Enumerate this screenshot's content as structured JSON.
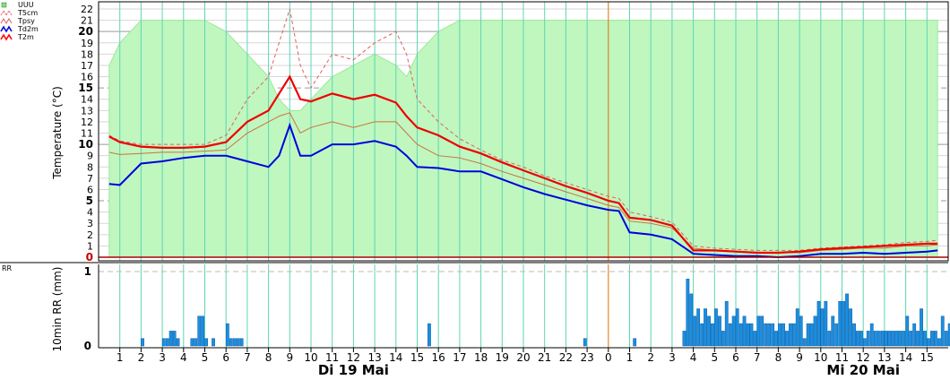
{
  "chart_data": [
    {
      "type": "area+line",
      "panel": "temperature",
      "ylabel": "Temperature (°C)",
      "ylim": [
        0,
        22.5
      ],
      "y_ticks": [
        0,
        1,
        2,
        3,
        4,
        5,
        6,
        7,
        8,
        9,
        10,
        11,
        12,
        13,
        14,
        15,
        16,
        17,
        18,
        19,
        20,
        21,
        22
      ],
      "x_ticks": [
        "1",
        "2",
        "3",
        "4",
        "5",
        "6",
        "7",
        "8",
        "9",
        "10",
        "11",
        "12",
        "13",
        "14",
        "15",
        "16",
        "17",
        "18",
        "19",
        "20",
        "21",
        "22",
        "23",
        "0",
        "1",
        "2",
        "3",
        "4",
        "5",
        "6",
        "7",
        "8",
        "9",
        "10",
        "11",
        "12",
        "13",
        "14",
        "15"
      ],
      "day_labels": [
        {
          "text": "Di 19 Mai",
          "at_hour": 12
        },
        {
          "text": "Mi 20 Mai",
          "at_hour": 36
        }
      ],
      "current_time_marker_hour": 24,
      "legend": [
        {
          "name": "UUU",
          "color": "#80e080"
        },
        {
          "name": "T5cm",
          "color": "#e05050"
        },
        {
          "name": "Tpsy",
          "color": "#e05050"
        },
        {
          "name": "Td2m",
          "color": "#0000dd"
        },
        {
          "name": "T2m",
          "color": "#ff0000"
        }
      ],
      "x_hours_from_midnight": [
        0.5,
        1,
        2,
        3,
        4,
        5,
        6,
        7,
        8,
        8.5,
        9,
        9.5,
        10,
        11,
        12,
        13,
        14,
        14.5,
        15,
        16,
        17,
        18,
        19,
        20,
        21,
        22,
        23,
        24,
        24.5,
        25,
        26,
        27,
        28,
        29,
        30,
        31,
        32,
        33,
        34,
        35,
        36,
        37,
        38,
        39,
        39.5
      ],
      "series": [
        {
          "name": "UUU",
          "values": [
            17,
            19,
            21,
            21,
            21,
            21,
            20,
            18,
            16,
            14,
            13,
            13,
            14,
            16,
            17,
            18,
            17,
            16,
            18,
            20,
            21,
            21,
            21,
            21,
            21,
            21,
            21,
            21,
            21,
            21,
            21,
            21,
            21,
            21,
            21,
            21,
            21,
            21,
            21,
            21,
            21,
            21,
            21,
            21,
            21
          ]
        },
        {
          "name": "T5cm",
          "values": [
            10.8,
            10.3,
            10.0,
            10.0,
            10.0,
            10.0,
            10.8,
            14,
            16,
            19,
            22,
            17,
            15,
            18,
            17.5,
            19,
            20,
            18,
            14,
            12,
            10.5,
            9.5,
            8.6,
            8,
            7.2,
            6.6,
            6,
            5.4,
            5.2,
            4.0,
            3.6,
            3.1,
            1,
            0.8,
            0.7,
            0.6,
            0.6,
            0.6,
            0.8,
            0.9,
            1.0,
            1.1,
            1.3,
            1.4,
            1.5
          ]
        },
        {
          "name": "Tpsy",
          "values": [
            9.3,
            9.1,
            9.2,
            9.3,
            9.3,
            9.4,
            9.5,
            11,
            12,
            12.5,
            12.8,
            11,
            11.5,
            12,
            11.5,
            12,
            12,
            11,
            10,
            9,
            8.8,
            8.3,
            7.6,
            7,
            6.4,
            5.8,
            5.2,
            4.6,
            4.4,
            3.2,
            3.0,
            2.6,
            0.8,
            0.6,
            0.5,
            0.4,
            0.4,
            0.4,
            0.6,
            0.7,
            0.8,
            0.8,
            1,
            1,
            1.1
          ]
        },
        {
          "name": "Td2m",
          "values": [
            6.5,
            6.4,
            8.3,
            8.5,
            8.8,
            9,
            9,
            8.5,
            8,
            9,
            11.7,
            9,
            9,
            10,
            10,
            10.3,
            9.8,
            9,
            8,
            7.9,
            7.6,
            7.6,
            6.9,
            6.2,
            5.6,
            5.1,
            4.6,
            4.2,
            4.1,
            2.2,
            2.0,
            1.6,
            0.3,
            0.2,
            0.1,
            0.1,
            0.0,
            0.1,
            0.3,
            0.3,
            0.4,
            0.3,
            0.4,
            0.5,
            0.6
          ]
        },
        {
          "name": "T2m",
          "values": [
            10.7,
            10.2,
            9.8,
            9.7,
            9.7,
            9.8,
            10.2,
            12,
            13,
            14.5,
            16,
            14,
            13.8,
            14.5,
            14,
            14.4,
            13.7,
            12.5,
            11.5,
            10.8,
            9.8,
            9.2,
            8.4,
            7.7,
            7,
            6.3,
            5.7,
            5,
            4.8,
            3.5,
            3.3,
            2.8,
            0.6,
            0.6,
            0.5,
            0.4,
            0.4,
            0.5,
            0.7,
            0.8,
            0.9,
            1,
            1.1,
            1.2,
            1.2
          ]
        }
      ]
    },
    {
      "type": "bar",
      "panel": "precipitation",
      "title": "RR",
      "ylabel": "10min RR (mm)",
      "ylim": [
        0,
        1
      ],
      "y_ticks": [
        0,
        1
      ],
      "bar_interval_minutes": 10,
      "start_hour": 0.5,
      "values": [
        0,
        0,
        0,
        0,
        0,
        0,
        0,
        0,
        0,
        0.1,
        0,
        0,
        0,
        0,
        0,
        0.1,
        0.1,
        0.2,
        0.2,
        0.1,
        0,
        0,
        0,
        0.1,
        0.1,
        0.4,
        0.4,
        0.1,
        0,
        0.1,
        0,
        0,
        0,
        0.3,
        0.1,
        0.1,
        0.1,
        0.1,
        0,
        0,
        0,
        0,
        0,
        0,
        0,
        0,
        0,
        0,
        0,
        0,
        0,
        0,
        0,
        0,
        0,
        0,
        0,
        0,
        0,
        0,
        0,
        0,
        0,
        0,
        0,
        0,
        0,
        0,
        0,
        0,
        0,
        0,
        0,
        0,
        0,
        0,
        0,
        0,
        0,
        0,
        0,
        0,
        0,
        0,
        0,
        0,
        0,
        0,
        0,
        0,
        0.3,
        0,
        0,
        0,
        0,
        0,
        0,
        0,
        0,
        0,
        0,
        0,
        0,
        0,
        0,
        0,
        0,
        0,
        0,
        0,
        0,
        0,
        0,
        0,
        0,
        0,
        0,
        0,
        0,
        0,
        0,
        0,
        0,
        0,
        0,
        0,
        0,
        0,
        0,
        0,
        0,
        0,
        0,
        0,
        0.1,
        0,
        0,
        0,
        0,
        0,
        0,
        0,
        0,
        0,
        0,
        0,
        0,
        0,
        0.1,
        0,
        0,
        0,
        0,
        0,
        0,
        0,
        0,
        0,
        0,
        0,
        0,
        0,
        0.2,
        0.9,
        0.7,
        0.4,
        0.5,
        0.3,
        0.5,
        0.4,
        0.3,
        0.5,
        0.4,
        0.2,
        0.6,
        0.3,
        0.4,
        0.5,
        0.3,
        0.4,
        0.3,
        0.3,
        0.2,
        0.4,
        0.4,
        0.3,
        0.3,
        0.3,
        0.2,
        0.3,
        0.3,
        0.2,
        0.3,
        0.3,
        0.5,
        0.4,
        0.1,
        0.3,
        0.3,
        0.4,
        0.6,
        0.5,
        0.6,
        0.2,
        0.4,
        0.3,
        0.6,
        0.6,
        0.7,
        0.5,
        0.3,
        0.2,
        0.2,
        0.1,
        0.2,
        0.3,
        0.2,
        0.2,
        0.2,
        0.2,
        0.2,
        0.2,
        0.2,
        0.2,
        0.2,
        0.4,
        0.2,
        0.3,
        0.2,
        0.5,
        0.2,
        0.1,
        0.2,
        0.2,
        0.1,
        0.4,
        0.2,
        0.3,
        0.6,
        0.7,
        0.8,
        0.9,
        0.8,
        0.5,
        0.2,
        0.1,
        0,
        0.1,
        0.3,
        0.1,
        0.1,
        0.3,
        0.2,
        0.1,
        0.1,
        0.2,
        0.4,
        0.3,
        0.2,
        0.3,
        0.2,
        0.1,
        0.3,
        0.4,
        0.3,
        0.5,
        0.4,
        0.3,
        0.4,
        0.2,
        0.1,
        0.1,
        0.2,
        0.3,
        0.1,
        0.3,
        0.2,
        0.4,
        0.4,
        0.3,
        0.1,
        0.3,
        0.5,
        0.3,
        0.2,
        0.4,
        0.2,
        0.2,
        0.1,
        0.1,
        0.3,
        0.4,
        0.4,
        0.5,
        0.6,
        0.8,
        0.7,
        0.5,
        0.6,
        0.9,
        1.0,
        0.9,
        0.8,
        0.6,
        0.7,
        0.4,
        0.8,
        0.8,
        0.7,
        0.6,
        0.5,
        0.7,
        0.5,
        0.7,
        0.7,
        0.4,
        0.4,
        0.3,
        0.5,
        0.6,
        0.6,
        0.4,
        0.4,
        0.5,
        0.5,
        0.5,
        0.5,
        0.5,
        0.5,
        0.3,
        0.3,
        0.2,
        0.2,
        0.3,
        0.3,
        0.2,
        0.3,
        0.4,
        0.3,
        0.3,
        0.3,
        0.3,
        0.3,
        0.3,
        0.2,
        0.2,
        0.2,
        0.2,
        0.1,
        0.2,
        0.3,
        0.3,
        0.4,
        0.5,
        0.3,
        0.2,
        0.2,
        0.1,
        0.2,
        0.1,
        0.2,
        0.2,
        0.2,
        0.1,
        0.1
      ]
    }
  ]
}
